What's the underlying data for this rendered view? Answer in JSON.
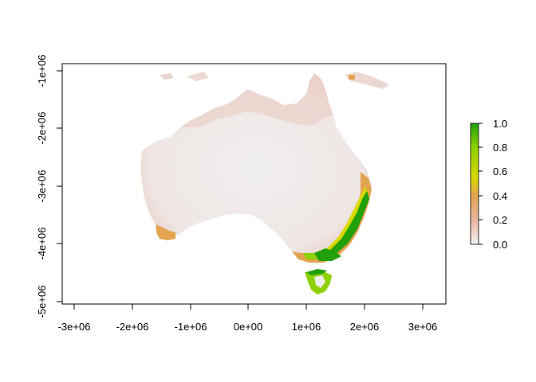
{
  "chart_data": {
    "type": "heatmap",
    "title": "",
    "xlabel": "",
    "ylabel": "",
    "x_ticks": [
      "-3e+06",
      "-2e+06",
      "-1e+06",
      "0e+00",
      "1e+06",
      "2e+06",
      "3e+06"
    ],
    "y_ticks": [
      "-1e+06",
      "-2e+06",
      "-3e+06",
      "-4e+06",
      "-5e+06"
    ],
    "legend": {
      "labels": [
        "1.0",
        "0.8",
        "0.6",
        "0.4",
        "0.2",
        "0.0"
      ],
      "range": [
        0.0,
        1.0
      ],
      "placement": "right",
      "colors": [
        "#22a00a",
        "#d9d800",
        "#e3a44f",
        "#f2f2f2"
      ]
    },
    "grid": false
  }
}
